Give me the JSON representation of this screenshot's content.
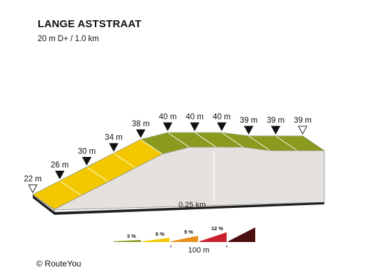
{
  "header": {
    "title": "LANGE ASTSTRAAT",
    "subtitle": "20 m D+ / 1.0 km"
  },
  "footer": {
    "copyright": "© RouteYou"
  },
  "colors": {
    "band_3": "#8a9a1e",
    "band_6": "#f3c800",
    "band_9": "#e8901c",
    "band_12": "#c8232c",
    "band_steep": "#4a0f0f",
    "side": "#e4e1de",
    "base": "#1f1f1f"
  },
  "chart_data": {
    "type": "area",
    "title": "LANGE ASTSTRAAT",
    "subtitle": "20 m D+ / 1.0 km",
    "distance_unit": "km",
    "elevation_unit": "m",
    "distance_marker": "0.25 km",
    "points": [
      {
        "km": 0.0,
        "elevation": 22,
        "label": "22 m",
        "marker": "open"
      },
      {
        "km": 0.1,
        "elevation": 26,
        "label": "26 m",
        "marker": "filled"
      },
      {
        "km": 0.2,
        "elevation": 30,
        "label": "30 m",
        "marker": "filled"
      },
      {
        "km": 0.3,
        "elevation": 34,
        "label": "34 m",
        "marker": "filled"
      },
      {
        "km": 0.4,
        "elevation": 38,
        "label": "38 m",
        "marker": "filled"
      },
      {
        "km": 0.5,
        "elevation": 40,
        "label": "40 m",
        "marker": "filled"
      },
      {
        "km": 0.6,
        "elevation": 40,
        "label": "40 m",
        "marker": "filled"
      },
      {
        "km": 0.7,
        "elevation": 40,
        "label": "40 m",
        "marker": "filled"
      },
      {
        "km": 0.8,
        "elevation": 39,
        "label": "39 m",
        "marker": "filled"
      },
      {
        "km": 0.9,
        "elevation": 39,
        "label": "39 m",
        "marker": "filled"
      },
      {
        "km": 1.0,
        "elevation": 39,
        "label": "39 m",
        "marker": "open"
      }
    ],
    "segments": [
      {
        "from_km": 0.0,
        "to_km": 0.1,
        "band": "6"
      },
      {
        "from_km": 0.1,
        "to_km": 0.2,
        "band": "6"
      },
      {
        "from_km": 0.2,
        "to_km": 0.3,
        "band": "6"
      },
      {
        "from_km": 0.3,
        "to_km": 0.4,
        "band": "6"
      },
      {
        "from_km": 0.4,
        "to_km": 0.5,
        "band": "3"
      },
      {
        "from_km": 0.5,
        "to_km": 0.6,
        "band": "3"
      },
      {
        "from_km": 0.6,
        "to_km": 0.7,
        "band": "3"
      },
      {
        "from_km": 0.7,
        "to_km": 0.8,
        "band": "3"
      },
      {
        "from_km": 0.8,
        "to_km": 0.9,
        "band": "3"
      },
      {
        "from_km": 0.9,
        "to_km": 1.0,
        "band": "3"
      }
    ],
    "legend": {
      "scale_label": "100 m",
      "entries": [
        {
          "label": "3 %",
          "band": "3"
        },
        {
          "label": "6 %",
          "band": "6"
        },
        {
          "label": "9 %",
          "band": "9"
        },
        {
          "label": "12 %",
          "band": "12"
        },
        {
          "label": "",
          "band": "steep"
        }
      ]
    }
  }
}
